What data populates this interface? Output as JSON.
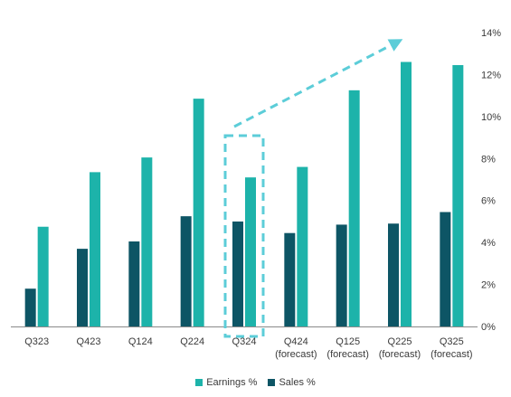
{
  "chart_data": {
    "type": "bar",
    "categories": [
      "Q323",
      "Q423",
      "Q124",
      "Q224",
      "Q324",
      "Q424\n(forecast)",
      "Q125\n(forecast)",
      "Q225\n(forecast)",
      "Q325\n(forecast)"
    ],
    "series": [
      {
        "name": "Sales %",
        "color": "#0d5565",
        "values": [
          1.8,
          3.7,
          4.05,
          5.25,
          5.0,
          4.45,
          4.85,
          4.9,
          5.45
        ]
      },
      {
        "name": "Earnings %",
        "color": "#1db3aa",
        "values": [
          4.75,
          7.35,
          8.05,
          10.85,
          7.1,
          7.6,
          11.25,
          12.6,
          12.45
        ]
      }
    ],
    "ylim": [
      0,
      14
    ],
    "yticks": [
      "0%",
      "2%",
      "4%",
      "6%",
      "8%",
      "10%",
      "12%",
      "14%"
    ],
    "y_axis_side": "right",
    "highlight_category": "Q324",
    "trend_arrow": true,
    "legend_position": "bottom"
  },
  "legend": {
    "earnings_label": "Earnings %",
    "sales_label": "Sales %"
  },
  "colors": {
    "earnings": "#1db3aa",
    "sales": "#0d5565",
    "highlight": "#5ccdd8",
    "axis": "#8a8a8a"
  }
}
